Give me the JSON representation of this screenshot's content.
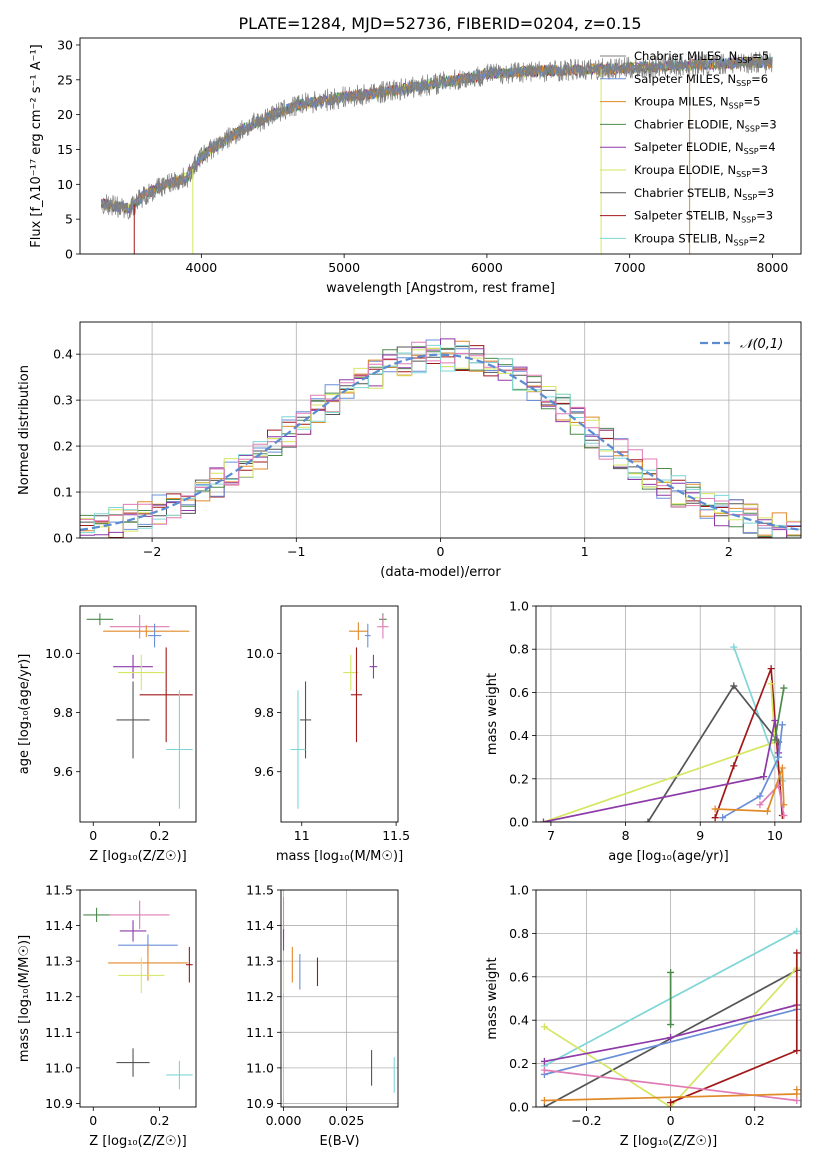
{
  "figure_title": "PLATE=1284, MJD=52736, FIBERID=0204, z=0.15",
  "colors": {
    "chabrier_miles": "#7f7f7f",
    "salpeter_miles": "#6a8fd8",
    "kroupa_miles": "#e08a2a",
    "chabrier_elodie": "#4c8a4c",
    "salpeter_elodie": "#8e3aa8",
    "kroupa_elodie": "#d6e660",
    "chabrier_stelib": "#555555",
    "salpeter_stelib": "#a01818",
    "kroupa_stelib": "#7fd6d6",
    "pink": "#e07bb5",
    "gaussian": "#5b8bd0",
    "grid": "#b0b0b0"
  },
  "chart_data": [
    {
      "id": "spectrum",
      "type": "line",
      "xlabel": "wavelength [Angstrom, rest frame]",
      "ylabel": "Flux [f_λ10⁻¹⁷ erg cm⁻² s⁻¹ A⁻¹]",
      "xlim": [
        3150,
        8200
      ],
      "ylim": [
        0,
        31
      ],
      "xticks": [
        4000,
        5000,
        6000,
        7000,
        8000
      ],
      "yticks": [
        0,
        5,
        10,
        15,
        20,
        25,
        30
      ],
      "grid": false,
      "legend_position": "top-right",
      "continuum": [
        [
          3300,
          7.2
        ],
        [
          3500,
          6.5
        ],
        [
          3600,
          8.5
        ],
        [
          3750,
          10
        ],
        [
          3900,
          11
        ],
        [
          4000,
          14
        ],
        [
          4100,
          15.5
        ],
        [
          4300,
          18
        ],
        [
          4500,
          20
        ],
        [
          4700,
          21.5
        ],
        [
          5000,
          22.5
        ],
        [
          5200,
          23
        ],
        [
          5500,
          24
        ],
        [
          5800,
          25
        ],
        [
          6000,
          25.8
        ],
        [
          6300,
          26.2
        ],
        [
          6600,
          26.4
        ],
        [
          6900,
          26.6
        ],
        [
          7200,
          26.9
        ],
        [
          7500,
          27.2
        ],
        [
          7800,
          27.5
        ],
        [
          8000,
          27.5
        ]
      ],
      "series": [
        {
          "name": "Chabrier MILES",
          "nssp": "5",
          "color_key": "chabrier_miles"
        },
        {
          "name": "Salpeter MILES",
          "nssp": "6",
          "color_key": "salpeter_miles"
        },
        {
          "name": "Kroupa MILES",
          "nssp": "5",
          "color_key": "kroupa_miles"
        },
        {
          "name": "Chabrier ELODIE",
          "nssp": "3",
          "color_key": "chabrier_elodie"
        },
        {
          "name": "Salpeter ELODIE",
          "nssp": "4",
          "color_key": "salpeter_elodie"
        },
        {
          "name": "Kroupa ELODIE",
          "nssp": "3",
          "color_key": "kroupa_elodie"
        },
        {
          "name": "Chabrier STELIB",
          "nssp": "3",
          "color_key": "chabrier_stelib"
        },
        {
          "name": "Salpeter STELIB",
          "nssp": "3",
          "color_key": "salpeter_stelib"
        },
        {
          "name": "Kroupa STELIB",
          "nssp": "2",
          "color_key": "kroupa_stelib"
        }
      ]
    },
    {
      "id": "residual_hist",
      "type": "histogram",
      "xlabel": "(data-model)/error",
      "ylabel": "Normed distribution",
      "xlim": [
        -2.5,
        2.5
      ],
      "ylim": [
        0,
        0.47
      ],
      "xticks": [
        -2,
        -1,
        0,
        1,
        2
      ],
      "yticks": [
        0.0,
        0.1,
        0.2,
        0.3,
        0.4
      ],
      "grid": true,
      "legend": "𝒩(0,1)",
      "legend_position": "top-right",
      "bin_width": 0.1,
      "bin_start": -2.5
    },
    {
      "id": "age_vs_Z",
      "type": "scatter",
      "xlabel": "Z [log₁₀(Z/Z☉)]",
      "ylabel": "age  [log₁₀(age/yr)]",
      "xlim": [
        -0.04,
        0.31
      ],
      "ylim": [
        9.43,
        10.16
      ],
      "xticks": [
        0.0,
        0.2
      ],
      "yticks": [
        9.6,
        9.8,
        10.0
      ],
      "grid": false,
      "points": [
        {
          "color_key": "chabrier_elodie",
          "x": 0.02,
          "y": 10.115,
          "xerr": 0.04,
          "yerr": 0.02
        },
        {
          "color_key": "pink",
          "x": 0.14,
          "y": 10.09,
          "xerr": 0.09,
          "yerr": 0.04
        },
        {
          "color_key": "kroupa_miles",
          "x": 0.16,
          "y": 10.075,
          "xerr": 0.13,
          "yerr": 0.02
        },
        {
          "color_key": "salpeter_miles",
          "x": 0.185,
          "y": 10.06,
          "xerr": 0.02,
          "yerr": 0.04
        },
        {
          "color_key": "salpeter_elodie",
          "x": 0.12,
          "y": 9.955,
          "xerr": 0.06,
          "yerr": 0.04
        },
        {
          "color_key": "kroupa_elodie",
          "x": 0.145,
          "y": 9.935,
          "xerr": 0.07,
          "yerr": 0.06
        },
        {
          "color_key": "salpeter_stelib",
          "x": 0.22,
          "y": 9.86,
          "xerr": 0.08,
          "yerr": 0.16
        },
        {
          "color_key": "chabrier_stelib",
          "x": 0.12,
          "y": 9.775,
          "xerr": 0.05,
          "yerr": 0.13
        },
        {
          "color_key": "kroupa_stelib",
          "x": 0.26,
          "y": 9.675,
          "xerr": 0.04,
          "yerr": 0.2
        }
      ]
    },
    {
      "id": "age_vs_mass",
      "type": "scatter",
      "xlabel": "mass [log₁₀(M/M☉)]",
      "ylabel": "",
      "xlim": [
        10.89,
        11.51
      ],
      "ylim": [
        9.43,
        10.16
      ],
      "xticks": [
        11.0,
        11.5
      ],
      "yticks": [
        9.6,
        9.8,
        10.0
      ],
      "grid": false,
      "points": [
        {
          "color_key": "chabrier_elodie",
          "x": 11.43,
          "y": 10.115,
          "xerr": 0.02,
          "yerr": 0.02
        },
        {
          "color_key": "pink",
          "x": 11.43,
          "y": 10.09,
          "xerr": 0.03,
          "yerr": 0.04
        },
        {
          "color_key": "kroupa_miles",
          "x": 11.3,
          "y": 10.075,
          "xerr": 0.05,
          "yerr": 0.03
        },
        {
          "color_key": "salpeter_miles",
          "x": 11.35,
          "y": 10.06,
          "xerr": 0.015,
          "yerr": 0.04
        },
        {
          "color_key": "salpeter_elodie",
          "x": 11.38,
          "y": 9.955,
          "xerr": 0.02,
          "yerr": 0.04
        },
        {
          "color_key": "kroupa_elodie",
          "x": 11.26,
          "y": 9.935,
          "xerr": 0.04,
          "yerr": 0.06
        },
        {
          "color_key": "salpeter_stelib",
          "x": 11.29,
          "y": 9.86,
          "xerr": 0.03,
          "yerr": 0.16
        },
        {
          "color_key": "chabrier_stelib",
          "x": 11.02,
          "y": 9.775,
          "xerr": 0.03,
          "yerr": 0.13
        },
        {
          "color_key": "kroupa_stelib",
          "x": 10.98,
          "y": 9.675,
          "xerr": 0.04,
          "yerr": 0.2
        }
      ]
    },
    {
      "id": "massweight_vs_age",
      "type": "line",
      "xlabel": "age  [log₁₀(age/yr)]",
      "ylabel": "mass weight",
      "xlim": [
        6.8,
        10.35
      ],
      "ylim": [
        0,
        1
      ],
      "xticks": [
        7,
        8,
        9,
        10
      ],
      "yticks": [
        0.0,
        0.2,
        0.4,
        0.6,
        0.8,
        1.0
      ],
      "grid": true,
      "series": [
        {
          "color_key": "kroupa_stelib",
          "points": [
            [
              9.45,
              0.81
            ],
            [
              10.1,
              0.19
            ]
          ]
        },
        {
          "color_key": "chabrier_stelib",
          "points": [
            [
              8.3,
              0.0
            ],
            [
              9.45,
              0.63
            ],
            [
              10.05,
              0.37
            ]
          ]
        },
        {
          "color_key": "salpeter_stelib",
          "points": [
            [
              9.2,
              0.02
            ],
            [
              9.45,
              0.26
            ],
            [
              9.95,
              0.71
            ],
            [
              10.1,
              0.03
            ]
          ]
        },
        {
          "color_key": "kroupa_elodie",
          "points": [
            [
              6.9,
              0.0
            ],
            [
              10.0,
              0.37
            ],
            [
              9.95,
              0.64
            ]
          ]
        },
        {
          "color_key": "salpeter_elodie",
          "points": [
            [
              6.9,
              0.0
            ],
            [
              9.85,
              0.21
            ],
            [
              10.0,
              0.47
            ],
            [
              10.05,
              0.32
            ]
          ]
        },
        {
          "color_key": "chabrier_elodie",
          "points": [
            [
              10.0,
              0.38
            ],
            [
              10.12,
              0.62
            ]
          ]
        },
        {
          "color_key": "salpeter_miles",
          "points": [
            [
              9.3,
              0.02
            ],
            [
              9.8,
              0.12
            ],
            [
              10.05,
              0.3
            ],
            [
              10.1,
              0.45
            ]
          ]
        },
        {
          "color_key": "pink",
          "points": [
            [
              9.8,
              0.08
            ],
            [
              10.05,
              0.17
            ],
            [
              10.12,
              0.03
            ]
          ]
        },
        {
          "color_key": "kroupa_miles",
          "points": [
            [
              9.2,
              0.06
            ],
            [
              9.9,
              0.05
            ],
            [
              10.1,
              0.25
            ],
            [
              10.12,
              0.08
            ]
          ]
        }
      ]
    },
    {
      "id": "mass_vs_Z",
      "type": "scatter",
      "xlabel": "Z [log₁₀(Z/Z☉)]",
      "ylabel": "mass [log₁₀(M/M☉)]",
      "xlim": [
        -0.04,
        0.31
      ],
      "ylim": [
        10.89,
        11.5
      ],
      "xticks": [
        0.0,
        0.2
      ],
      "yticks": [
        10.9,
        11.0,
        11.1,
        11.2,
        11.3,
        11.4,
        11.5
      ],
      "grid": false,
      "points": [
        {
          "color_key": "chabrier_elodie",
          "x": 0.01,
          "y": 11.43,
          "xerr": 0.04,
          "yerr": 0.02
        },
        {
          "color_key": "pink",
          "x": 0.14,
          "y": 11.43,
          "xerr": 0.09,
          "yerr": 0.04
        },
        {
          "color_key": "salpeter_elodie",
          "x": 0.12,
          "y": 11.385,
          "xerr": 0.04,
          "yerr": 0.03
        },
        {
          "color_key": "salpeter_miles",
          "x": 0.165,
          "y": 11.345,
          "xerr": 0.09,
          "yerr": 0.03
        },
        {
          "color_key": "kroupa_miles",
          "x": 0.165,
          "y": 11.295,
          "xerr": 0.12,
          "yerr": 0.05
        },
        {
          "color_key": "salpeter_stelib",
          "x": 0.29,
          "y": 11.29,
          "xerr": 0.01,
          "yerr": 0.05
        },
        {
          "color_key": "kroupa_elodie",
          "x": 0.145,
          "y": 11.26,
          "xerr": 0.07,
          "yerr": 0.05
        },
        {
          "color_key": "chabrier_stelib",
          "x": 0.12,
          "y": 11.015,
          "xerr": 0.05,
          "yerr": 0.04
        },
        {
          "color_key": "kroupa_stelib",
          "x": 0.26,
          "y": 10.98,
          "xerr": 0.04,
          "yerr": 0.04
        }
      ]
    },
    {
      "id": "mass_vs_ebv",
      "type": "scatter",
      "xlabel": "E(B-V)",
      "ylabel": "",
      "xlim": [
        -0.001,
        0.0455
      ],
      "ylim": [
        10.89,
        11.5
      ],
      "xticks": [
        0.0,
        0.025
      ],
      "xticklabels": [
        "0.000",
        "0.025"
      ],
      "yticks": [
        10.9,
        11.0,
        11.1,
        11.2,
        11.3,
        11.4,
        11.5
      ],
      "grid": true,
      "points": [
        {
          "color_key": "pink",
          "x": 0.0,
          "y": 11.42,
          "yerr": 0.06
        },
        {
          "color_key": "salpeter_elodie",
          "x": 0.0,
          "y": 11.36,
          "yerr": 0.03
        },
        {
          "color_key": "kroupa_elodie",
          "x": 0.0,
          "y": 11.25,
          "yerr": 0.04
        },
        {
          "color_key": "kroupa_miles",
          "x": 0.0035,
          "y": 11.29,
          "yerr": 0.05
        },
        {
          "color_key": "salpeter_miles",
          "x": 0.0065,
          "y": 11.27,
          "yerr": 0.05
        },
        {
          "color_key": "salpeter_stelib",
          "x": 0.0135,
          "y": 11.27,
          "yerr": 0.04
        },
        {
          "color_key": "chabrier_stelib",
          "x": 0.035,
          "y": 11.0,
          "yerr": 0.05
        },
        {
          "color_key": "kroupa_stelib",
          "x": 0.044,
          "y": 10.98,
          "yerr": 0.05
        }
      ]
    },
    {
      "id": "massweight_vs_Z",
      "type": "line",
      "xlabel": "Z [log₁₀(Z/Z☉)]",
      "ylabel": "mass weight",
      "xlim": [
        -0.32,
        0.31
      ],
      "ylim": [
        0,
        1
      ],
      "xticks": [
        -0.2,
        0.0,
        0.2
      ],
      "yticks": [
        0.0,
        0.2,
        0.4,
        0.6,
        0.8,
        1.0
      ],
      "grid": true,
      "series": [
        {
          "color_key": "kroupa_stelib",
          "points": [
            [
              -0.3,
              0.19
            ],
            [
              0.3,
              0.81
            ]
          ]
        },
        {
          "color_key": "chabrier_stelib",
          "points": [
            [
              -0.3,
              0.0
            ],
            [
              0.3,
              0.63
            ]
          ]
        },
        {
          "color_key": "kroupa_elodie",
          "points": [
            [
              -0.3,
              0.37
            ],
            [
              0.0,
              0.0
            ],
            [
              0.3,
              0.64
            ]
          ]
        },
        {
          "color_key": "salpeter_elodie",
          "points": [
            [
              -0.3,
              0.21
            ],
            [
              0.0,
              0.32
            ],
            [
              0.3,
              0.47
            ]
          ]
        },
        {
          "color_key": "salpeter_miles",
          "points": [
            [
              -0.3,
              0.15
            ],
            [
              0.3,
              0.45
            ]
          ]
        },
        {
          "color_key": "chabrier_elodie",
          "points": [
            [
              0.0,
              0.38
            ],
            [
              0.0,
              0.62
            ]
          ]
        },
        {
          "color_key": "salpeter_stelib",
          "points": [
            [
              0.0,
              0.02
            ],
            [
              0.3,
              0.26
            ],
            [
              0.3,
              0.71
            ]
          ]
        },
        {
          "color_key": "pink",
          "points": [
            [
              -0.3,
              0.17
            ],
            [
              0.3,
              0.03
            ]
          ]
        },
        {
          "color_key": "kroupa_miles",
          "points": [
            [
              -0.3,
              0.03
            ],
            [
              0.3,
              0.06
            ],
            [
              0.3,
              0.08
            ]
          ]
        }
      ]
    }
  ]
}
